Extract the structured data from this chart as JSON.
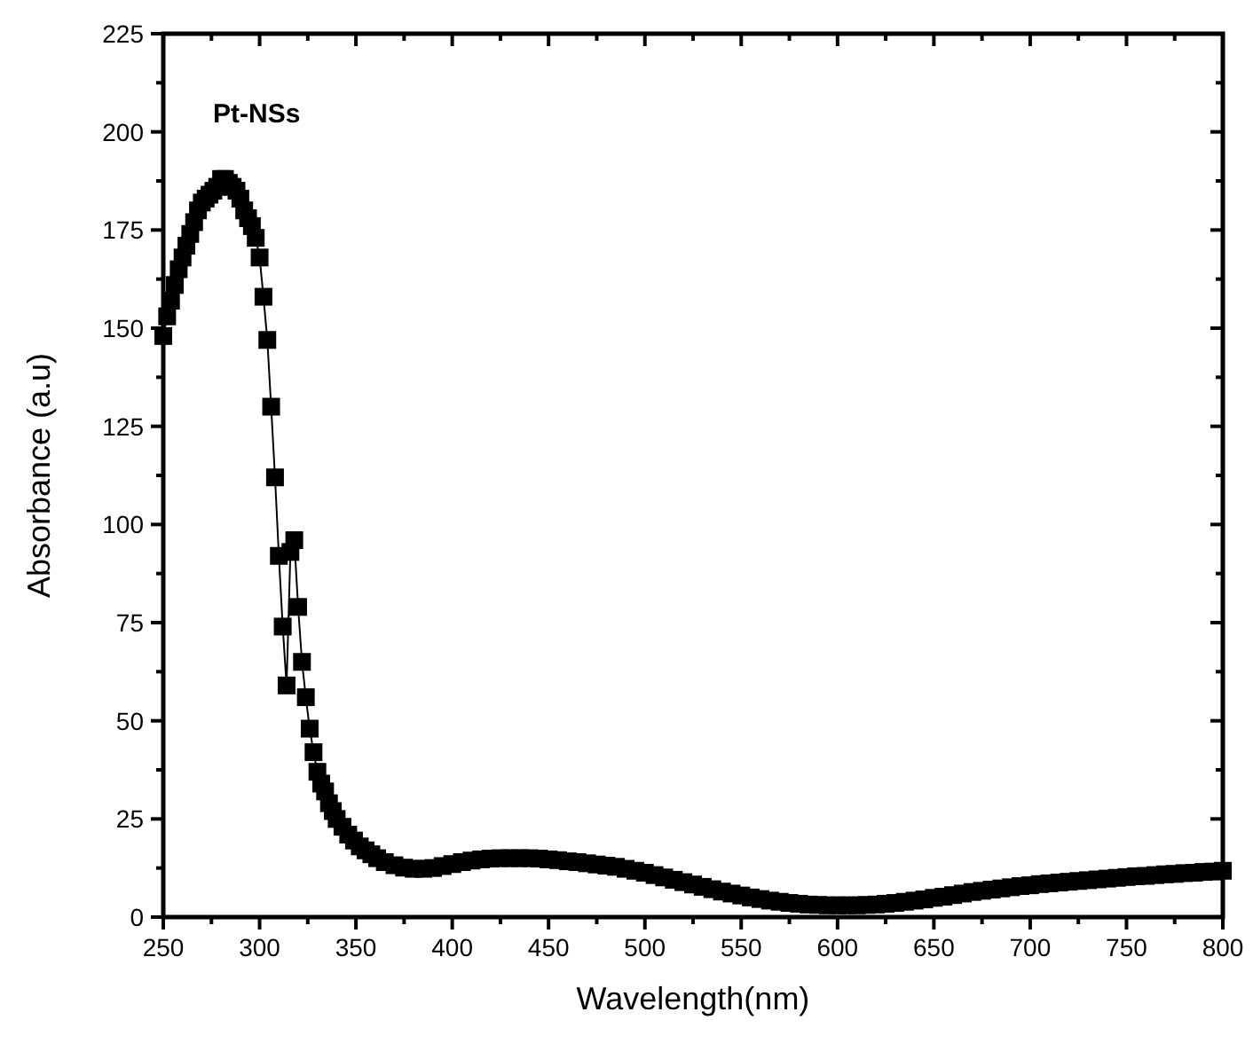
{
  "chart_data": {
    "type": "line",
    "xlabel": "Wavelength(nm)",
    "ylabel": "Absorbance (a.u)",
    "marker": "square",
    "grid": false,
    "xlim": [
      250,
      800
    ],
    "ylim": [
      0,
      225
    ],
    "xticks": [
      250,
      {
        "value": 275,
        "label": null
      },
      300,
      {
        "value": 325,
        "label": null
      },
      350,
      {
        "value": 375,
        "label": null
      },
      400,
      {
        "value": 425,
        "label": null
      },
      450,
      {
        "value": 475,
        "label": null
      },
      500,
      {
        "value": 525,
        "label": null
      },
      550,
      {
        "value": 575,
        "label": null
      },
      600,
      {
        "value": 625,
        "label": null
      },
      650,
      {
        "value": 675,
        "label": null
      },
      700,
      {
        "value": 725,
        "label": null
      },
      750,
      {
        "value": 775,
        "label": null
      },
      800
    ],
    "yticks": [
      0,
      {
        "value": 12.5,
        "label": null
      },
      25,
      {
        "value": 37.5,
        "label": null
      },
      50,
      {
        "value": 62.5,
        "label": null
      },
      75,
      {
        "value": 87.5,
        "label": null
      },
      100,
      {
        "value": 112.5,
        "label": null
      },
      125,
      {
        "value": 137.5,
        "label": null
      },
      150,
      {
        "value": 162.5,
        "label": null
      },
      175,
      {
        "value": 187.5,
        "label": null
      },
      200,
      {
        "value": 212.5,
        "label": null
      },
      225
    ],
    "series": [
      {
        "name": "Pt-NSs",
        "color": "#000000",
        "x": [
          250,
          252,
          254,
          256,
          258,
          260,
          262,
          264,
          266,
          268,
          270,
          272,
          274,
          276,
          278,
          280,
          282,
          284,
          286,
          288,
          290,
          292,
          294,
          296,
          298,
          300,
          302,
          304,
          306,
          308,
          310,
          312,
          314,
          316,
          318,
          320,
          322,
          324,
          326,
          328,
          330,
          332,
          334,
          336,
          338,
          340,
          343,
          346,
          349,
          352,
          355,
          358,
          361,
          365,
          370,
          375,
          380,
          385,
          390,
          395,
          400,
          405,
          410,
          415,
          420,
          425,
          430,
          435,
          440,
          445,
          450,
          455,
          460,
          465,
          470,
          475,
          480,
          485,
          490,
          495,
          500,
          505,
          510,
          515,
          520,
          525,
          530,
          535,
          540,
          545,
          550,
          555,
          560,
          565,
          570,
          575,
          580,
          585,
          590,
          595,
          600,
          605,
          610,
          615,
          620,
          625,
          630,
          635,
          640,
          645,
          650,
          655,
          660,
          665,
          670,
          675,
          680,
          685,
          690,
          695,
          700,
          705,
          710,
          715,
          720,
          725,
          730,
          735,
          740,
          745,
          750,
          755,
          760,
          765,
          770,
          775,
          780,
          785,
          790,
          795,
          800
        ],
        "values": [
          148,
          153,
          157,
          161,
          165,
          168,
          171,
          174,
          177,
          180,
          182,
          183,
          184,
          185,
          186,
          188,
          188,
          187,
          186,
          185,
          183,
          180,
          178,
          176,
          173,
          168,
          158,
          147,
          130,
          112,
          92,
          74,
          59,
          93,
          96,
          79,
          65,
          56,
          48,
          42,
          37,
          34,
          32,
          29,
          27,
          25,
          23,
          21,
          19.5,
          18,
          17,
          16,
          15,
          14,
          13.2,
          12.6,
          12.3,
          12.3,
          12.5,
          13,
          13.5,
          14,
          14.4,
          14.7,
          14.9,
          15,
          15,
          15,
          15,
          14.9,
          14.7,
          14.5,
          14.2,
          14,
          13.7,
          13.4,
          13.1,
          12.8,
          12.3,
          11.8,
          11.3,
          10.7,
          10.1,
          9.5,
          8.9,
          8.3,
          7.7,
          7.1,
          6.5,
          6,
          5.5,
          5,
          4.6,
          4.2,
          3.9,
          3.6,
          3.4,
          3.2,
          3.1,
          3,
          3,
          3,
          3,
          3.1,
          3.2,
          3.4,
          3.6,
          3.9,
          4.2,
          4.5,
          4.9,
          5.2,
          5.6,
          6,
          6.4,
          6.7,
          7,
          7.3,
          7.6,
          7.9,
          8.1,
          8.4,
          8.6,
          8.8,
          9,
          9.2,
          9.4,
          9.6,
          9.8,
          10,
          10.2,
          10.4,
          10.5,
          10.7,
          10.9,
          11,
          11.2,
          11.3,
          11.5,
          11.6,
          11.8
        ]
      }
    ]
  }
}
